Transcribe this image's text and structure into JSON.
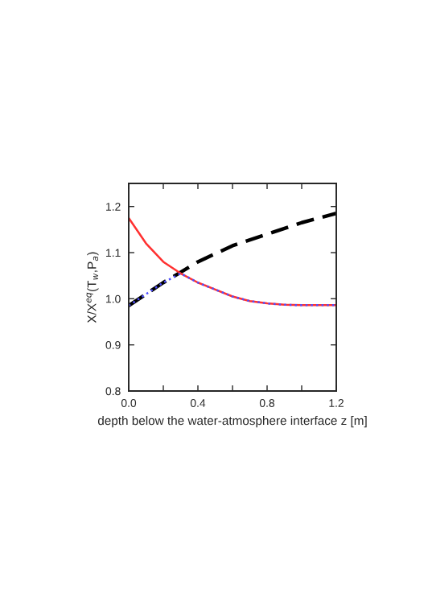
{
  "chart_data": {
    "type": "line",
    "xlabel": "depth below the water-atmosphere interface z [m]",
    "ylabel": "X/X$^{eq}$(T$_{w}$,P$_{a}$)",
    "xlim": [
      0,
      1.2
    ],
    "ylim": [
      0.8,
      1.25
    ],
    "xticks": [
      {
        "value": 0,
        "label": "0.0"
      },
      {
        "value": 0.2,
        "label": null
      },
      0.4,
      {
        "value": 0.6,
        "label": null
      },
      0.8,
      {
        "value": 1.0,
        "label": null
      },
      1.2
    ],
    "yticks": [
      0.8,
      0.9,
      {
        "value": 1.0,
        "label": "1.0"
      },
      1.1,
      1.2
    ],
    "grid": false,
    "series": [
      {
        "color": "#000000",
        "line_style": "dashed",
        "x": [
          0,
          0.2,
          0.4,
          0.6,
          0.8,
          1.0,
          1.2
        ],
        "values": [
          0.985,
          1.035,
          1.08,
          1.115,
          1.14,
          1.165,
          1.185
        ]
      },
      {
        "color": "#ff3030",
        "line_style": "solid",
        "x": [
          0,
          0.1,
          0.2,
          0.3,
          0.4,
          0.5,
          0.6,
          0.7,
          0.8,
          0.9,
          1.0,
          1.2
        ],
        "values": [
          1.175,
          1.12,
          1.08,
          1.055,
          1.035,
          1.02,
          1.005,
          0.995,
          0.99,
          0.987,
          0.986,
          0.986
        ]
      },
      {
        "color": "#5050ff",
        "line_style": "dotted",
        "x": [
          0,
          0.1,
          0.2,
          0.3,
          0.4,
          0.5,
          0.6,
          0.7,
          0.8,
          0.9,
          1.0,
          1.2
        ],
        "values": [
          0.985,
          1.01,
          1.035,
          1.055,
          1.035,
          1.02,
          1.005,
          0.995,
          0.99,
          0.987,
          0.986,
          0.986
        ]
      }
    ]
  }
}
